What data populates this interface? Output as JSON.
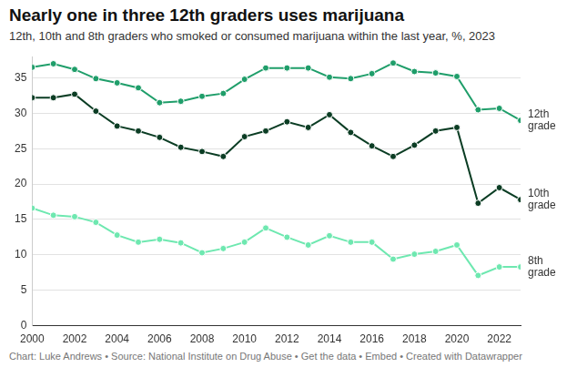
{
  "chart_data": {
    "type": "line",
    "title": "Nearly one in three 12th graders uses marijuana",
    "subtitle": "12th, 10th and 8th graders who smoked or consumed marijuana within the last year, %, 2023",
    "footer": "Chart: Luke Andrews • Source: National Institute on Drug Abuse • Get the data • Embed • Created with Datawrapper",
    "x": [
      2000,
      2001,
      2002,
      2003,
      2004,
      2005,
      2006,
      2007,
      2008,
      2009,
      2010,
      2011,
      2012,
      2013,
      2014,
      2015,
      2016,
      2017,
      2018,
      2019,
      2020,
      2021,
      2022,
      2023
    ],
    "series": [
      {
        "name": "12th grade",
        "color": "#1f9e6a",
        "marker": "circle",
        "values": [
          36.5,
          37.0,
          36.2,
          34.9,
          34.3,
          33.6,
          31.5,
          31.7,
          32.4,
          32.8,
          34.8,
          36.4,
          36.4,
          36.4,
          35.1,
          34.9,
          35.6,
          37.1,
          35.9,
          35.7,
          35.2,
          30.5,
          30.7,
          29.0
        ]
      },
      {
        "name": "10th grade",
        "color": "#0b3d24",
        "marker": "circle",
        "values": [
          32.2,
          32.2,
          32.7,
          30.3,
          28.2,
          27.5,
          26.6,
          25.2,
          24.6,
          23.9,
          26.7,
          27.5,
          28.8,
          28.0,
          29.8,
          27.3,
          25.4,
          23.9,
          25.5,
          27.5,
          28.0,
          17.3,
          19.5,
          17.8
        ]
      },
      {
        "name": "8th grade",
        "color": "#6ee8b0",
        "marker": "circle",
        "values": [
          16.6,
          15.6,
          15.4,
          14.6,
          12.8,
          11.8,
          12.2,
          11.7,
          10.3,
          10.9,
          11.8,
          13.8,
          12.5,
          11.4,
          12.7,
          11.8,
          11.8,
          9.4,
          10.1,
          10.5,
          11.4,
          7.1,
          8.3,
          8.3
        ]
      }
    ],
    "xlim": [
      2000,
      2023
    ],
    "xticks": [
      2000,
      2002,
      2004,
      2006,
      2008,
      2010,
      2012,
      2014,
      2016,
      2018,
      2020,
      2022
    ],
    "ylim": [
      0,
      38
    ],
    "yticks": [
      0,
      5,
      10,
      15,
      20,
      25,
      30,
      35
    ],
    "grid": true
  }
}
